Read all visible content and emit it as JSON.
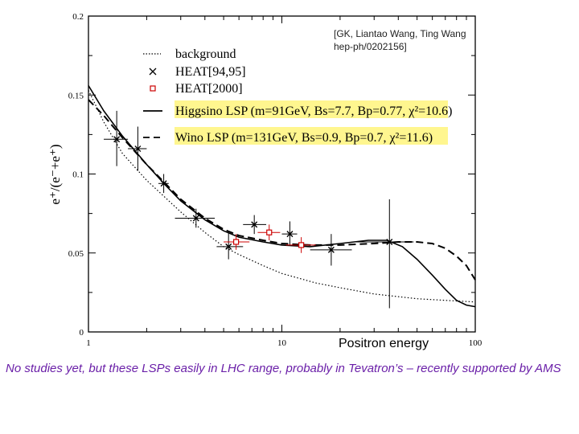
{
  "citation": "[GK, Liantao Wang, Ting Wang hep-ph/0202156]",
  "x_axis_title": "Positron energy",
  "caption": "No studies yet, but these LSPs easily in LHC range, probably in Tevatron’s – recently supported by AMS",
  "colors": {
    "highlight": "#fff68f",
    "heat2000": "#cc0000",
    "caption": "#6a1fa8"
  },
  "chart_data": {
    "type": "scatter",
    "x_scale": "log",
    "xlim": [
      1,
      100
    ],
    "ylim": [
      0,
      0.2
    ],
    "ylabel": "e⁺/(e⁻+e⁺)",
    "x_ticks": [
      {
        "value": 1,
        "label": "1"
      },
      {
        "value": 10,
        "label": "10"
      },
      {
        "value": 100,
        "label": "100"
      }
    ],
    "y_ticks": [
      {
        "value": 0,
        "label": "0"
      },
      {
        "value": 0.05,
        "label": "0.05"
      },
      {
        "value": 0.1,
        "label": "0.1"
      },
      {
        "value": 0.15,
        "label": "0.15"
      },
      {
        "value": 0.2,
        "label": "0.2"
      }
    ],
    "legend": [
      {
        "label": "background",
        "marker": "dotted-line"
      },
      {
        "label": "HEAT[94,95]",
        "marker": "x"
      },
      {
        "label": "HEAT[2000]",
        "marker": "square"
      },
      {
        "label": "Higgsino LSP (m=91GeV, Bs=7.7, Bp=0.77, χ²=10.6)",
        "marker": "solid-line",
        "highlight": true
      },
      {
        "label": "Wino LSP (m=131GeV, Bs=0.9, Bp=0.7, χ²=11.6)",
        "marker": "dashed-line",
        "highlight": true
      }
    ],
    "series": [
      {
        "name": "HEAT[94,95]",
        "style": "x",
        "points": [
          {
            "x": 1.4,
            "y": 0.122,
            "xlo": 1.2,
            "xhi": 1.6,
            "ylo": 0.105,
            "yhi": 0.14
          },
          {
            "x": 1.8,
            "y": 0.116,
            "xlo": 1.6,
            "xhi": 2.0,
            "ylo": 0.102,
            "yhi": 0.13
          },
          {
            "x": 2.45,
            "y": 0.094,
            "xlo": 2.3,
            "xhi": 2.6,
            "ylo": 0.088,
            "yhi": 0.1
          },
          {
            "x": 3.6,
            "y": 0.072,
            "xlo": 2.8,
            "xhi": 4.5,
            "ylo": 0.066,
            "yhi": 0.078
          },
          {
            "x": 5.3,
            "y": 0.054,
            "xlo": 4.6,
            "xhi": 6.3,
            "ylo": 0.046,
            "yhi": 0.063
          },
          {
            "x": 7.2,
            "y": 0.068,
            "xlo": 6.3,
            "xhi": 8.3,
            "ylo": 0.062,
            "yhi": 0.074
          },
          {
            "x": 11.0,
            "y": 0.062,
            "xlo": 10.0,
            "xhi": 12.0,
            "ylo": 0.055,
            "yhi": 0.07
          },
          {
            "x": 18.0,
            "y": 0.052,
            "xlo": 14.0,
            "xhi": 23.0,
            "ylo": 0.042,
            "yhi": 0.062
          },
          {
            "x": 36.0,
            "y": 0.057,
            "xlo": 23.0,
            "xhi": 48.0,
            "ylo": 0.015,
            "yhi": 0.084
          }
        ]
      },
      {
        "name": "HEAT[2000]",
        "style": "square",
        "points": [
          {
            "x": 5.8,
            "y": 0.057,
            "xlo": 5.0,
            "xhi": 6.8,
            "ylo": 0.052,
            "yhi": 0.062
          },
          {
            "x": 8.6,
            "y": 0.063,
            "xlo": 7.5,
            "xhi": 9.8,
            "ylo": 0.058,
            "yhi": 0.068
          },
          {
            "x": 12.6,
            "y": 0.055,
            "xlo": 10.5,
            "xhi": 15.0,
            "ylo": 0.05,
            "yhi": 0.06
          }
        ]
      },
      {
        "name": "background",
        "style": "dotted",
        "points": [
          [
            1,
            0.153
          ],
          [
            1.2,
            0.133
          ],
          [
            1.5,
            0.113
          ],
          [
            2,
            0.096
          ],
          [
            2.5,
            0.085
          ],
          [
            3,
            0.076
          ],
          [
            4,
            0.063
          ],
          [
            5,
            0.054
          ],
          [
            6,
            0.049
          ],
          [
            8,
            0.042
          ],
          [
            10,
            0.037
          ],
          [
            15,
            0.031
          ],
          [
            20,
            0.028
          ],
          [
            30,
            0.024
          ],
          [
            50,
            0.021
          ],
          [
            70,
            0.02
          ],
          [
            100,
            0.019
          ]
        ]
      },
      {
        "name": "Higgsino LSP",
        "style": "solid",
        "points": [
          [
            1,
            0.156
          ],
          [
            1.2,
            0.14
          ],
          [
            1.5,
            0.124
          ],
          [
            2,
            0.106
          ],
          [
            2.5,
            0.093
          ],
          [
            3,
            0.083
          ],
          [
            4,
            0.071
          ],
          [
            5,
            0.064
          ],
          [
            6,
            0.06
          ],
          [
            8,
            0.057
          ],
          [
            10,
            0.055
          ],
          [
            14,
            0.054
          ],
          [
            20,
            0.056
          ],
          [
            28,
            0.058
          ],
          [
            35,
            0.058
          ],
          [
            42,
            0.054
          ],
          [
            50,
            0.046
          ],
          [
            60,
            0.036
          ],
          [
            70,
            0.027
          ],
          [
            80,
            0.02
          ],
          [
            90,
            0.017
          ],
          [
            100,
            0.016
          ]
        ]
      },
      {
        "name": "Wino LSP",
        "style": "dashed",
        "points": [
          [
            1,
            0.147
          ],
          [
            1.2,
            0.137
          ],
          [
            1.5,
            0.123
          ],
          [
            2,
            0.106
          ],
          [
            2.5,
            0.094
          ],
          [
            3,
            0.084
          ],
          [
            4,
            0.072
          ],
          [
            5,
            0.065
          ],
          [
            6,
            0.061
          ],
          [
            8,
            0.058
          ],
          [
            10,
            0.056
          ],
          [
            14,
            0.055
          ],
          [
            20,
            0.055
          ],
          [
            30,
            0.056
          ],
          [
            40,
            0.057
          ],
          [
            50,
            0.057
          ],
          [
            60,
            0.056
          ],
          [
            70,
            0.053
          ],
          [
            80,
            0.048
          ],
          [
            90,
            0.042
          ],
          [
            100,
            0.033
          ]
        ]
      }
    ]
  }
}
